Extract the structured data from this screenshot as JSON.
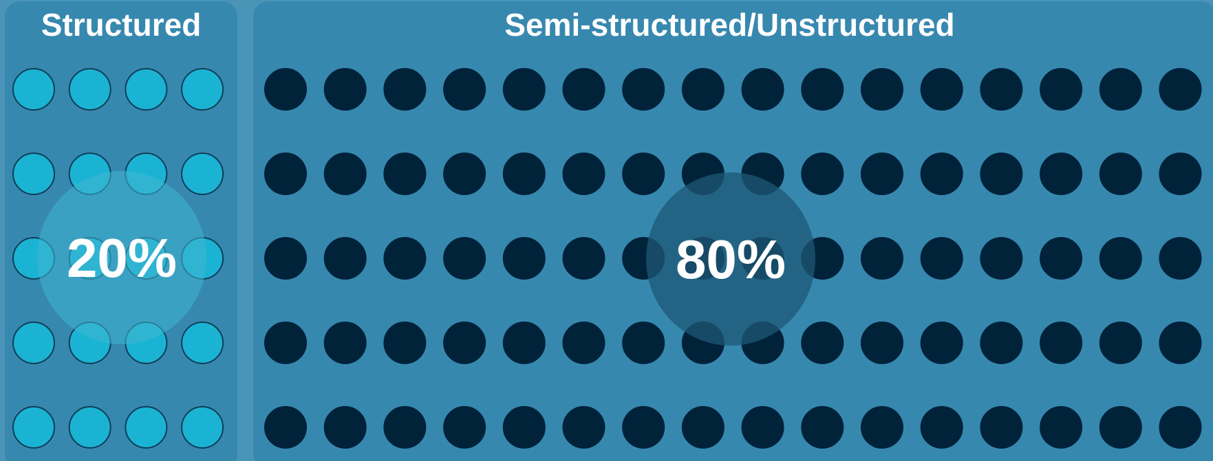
{
  "chart_data": {
    "type": "waffle",
    "total_dots": 100,
    "grid_rows": 5,
    "series": [
      {
        "name": "Structured",
        "value": 20,
        "value_label": "20%",
        "columns": 4,
        "dot_color": "#1bb3d3",
        "dot_stroke": "#0f3d57",
        "highlight_color": "#3fb6d1"
      },
      {
        "name": "Semi-structured/Unstructured",
        "value": 80,
        "value_label": "80%",
        "columns": 16,
        "dot_color": "#00233a",
        "dot_stroke": "#00233a",
        "highlight_color": "#1e5876"
      }
    ]
  }
}
